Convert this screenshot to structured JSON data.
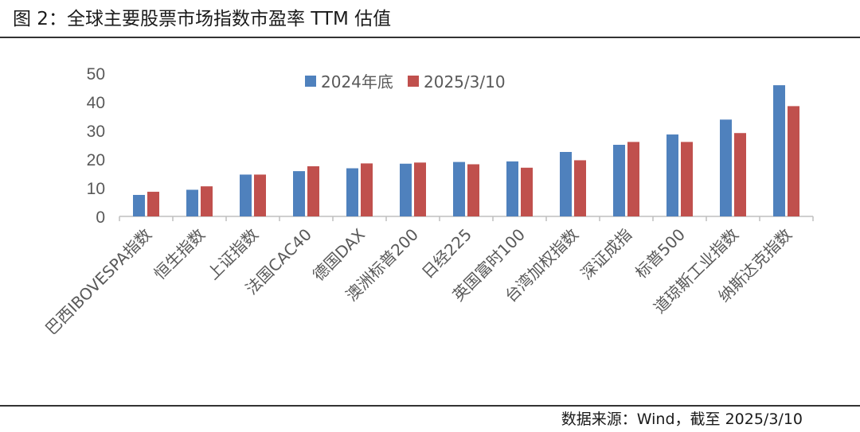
{
  "header": {
    "title": "图 2：全球主要股票市场指数市盈率 TTM 估值"
  },
  "footer": {
    "source": "数据来源：Wind，截至 2025/3/10"
  },
  "colors": {
    "series_2024": "#4f81bd",
    "series_2025": "#c0504d",
    "axis": "#bfbfbf",
    "text": "#595959"
  },
  "chart_data": {
    "type": "bar",
    "title": "",
    "xlabel": "",
    "ylabel": "",
    "ylim": [
      0,
      50
    ],
    "yticks": [
      0,
      10,
      20,
      30,
      40,
      50
    ],
    "grid": false,
    "legend_position": "top-center",
    "categories": [
      "巴西IBOVESPA指数",
      "恒生指数",
      "上证指数",
      "法国CAC40",
      "德国DAX",
      "澳洲标普200",
      "日经225",
      "英国富时100",
      "台湾加权指数",
      "深证成指",
      "标普500",
      "道琼斯工业指数",
      "纳斯达克指数"
    ],
    "series": [
      {
        "name": "2024年底",
        "color": "#4f81bd",
        "values": [
          7.5,
          9.3,
          14.6,
          15.8,
          16.8,
          18.4,
          19.0,
          19.2,
          22.5,
          25.0,
          28.6,
          33.8,
          45.8
        ]
      },
      {
        "name": "2025/3/10",
        "color": "#c0504d",
        "values": [
          8.6,
          10.5,
          14.6,
          17.5,
          18.5,
          18.8,
          18.2,
          17.0,
          19.6,
          26.0,
          26.0,
          29.1,
          38.5
        ]
      }
    ]
  }
}
